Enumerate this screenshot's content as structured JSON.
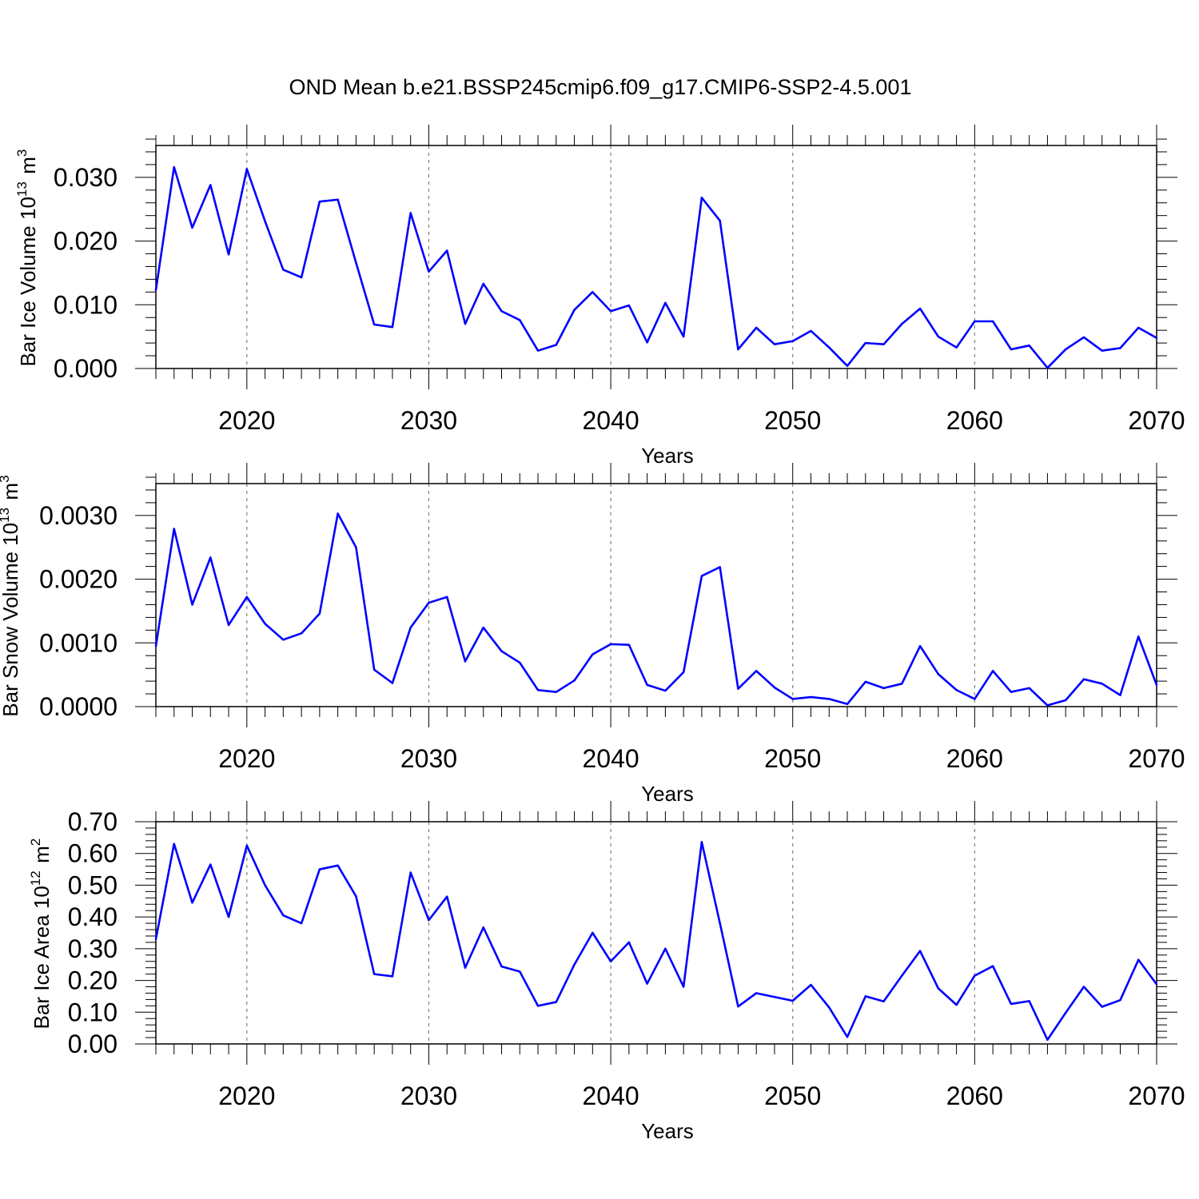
{
  "figure": {
    "title": "OND Mean b.e21.BSSP245cmip6.f09_g17.CMIP6-SSP2-4.5.001"
  },
  "colors": {
    "line": "#0000ff",
    "axis": "#000000",
    "grid": "#808080"
  },
  "chart_data": [
    {
      "type": "line",
      "ylabel": "Bar Ice Volume 10",
      "ylabel_exponent": "13",
      "ylabel_unit": "m",
      "ylabel_unit_exponent": "3",
      "xlabel": "Years",
      "xlim": [
        2015,
        2070
      ],
      "ylim": [
        0,
        0.035
      ],
      "yticks": [
        0.0,
        0.01,
        0.02,
        0.03
      ],
      "ytick_labels": [
        "0.000",
        "0.010",
        "0.020",
        "0.030"
      ],
      "xticks": [
        2020,
        2030,
        2040,
        2050,
        2060,
        2070
      ],
      "xtick_labels": [
        "2020",
        "2030",
        "2040",
        "2050",
        "2060",
        "2070"
      ],
      "vertical_grid": "dashed at major x ticks",
      "x": [
        2015,
        2016,
        2017,
        2018,
        2019,
        2020,
        2021,
        2022,
        2023,
        2024,
        2025,
        2026,
        2027,
        2028,
        2029,
        2030,
        2031,
        2032,
        2033,
        2034,
        2035,
        2036,
        2037,
        2038,
        2039,
        2040,
        2041,
        2042,
        2043,
        2044,
        2045,
        2046,
        2047,
        2048,
        2049,
        2050,
        2051,
        2052,
        2053,
        2054,
        2055,
        2056,
        2057,
        2058,
        2059,
        2060,
        2061,
        2062,
        2063,
        2064,
        2065,
        2066,
        2067,
        2068,
        2069,
        2070
      ],
      "series": [
        {
          "values": [
            0.0123,
            0.0316,
            0.0221,
            0.0288,
            0.0179,
            0.0313,
            0.0231,
            0.0155,
            0.0143,
            0.0262,
            0.0265,
            0.0166,
            0.0069,
            0.0065,
            0.0244,
            0.0152,
            0.0185,
            0.007,
            0.0133,
            0.009,
            0.0076,
            0.0028,
            0.0037,
            0.0092,
            0.012,
            0.009,
            0.0099,
            0.0041,
            0.0103,
            0.005,
            0.0268,
            0.0232,
            0.003,
            0.0064,
            0.0038,
            0.0043,
            0.0059,
            0.0033,
            0.0004,
            0.004,
            0.0038,
            0.007,
            0.0094,
            0.005,
            0.0033,
            0.0074,
            0.0074,
            0.003,
            0.0036,
            0.0001,
            0.003,
            0.0049,
            0.0028,
            0.0032,
            0.0064,
            0.0048
          ]
        }
      ]
    },
    {
      "type": "line",
      "ylabel": "Bar Snow Volume 10",
      "ylabel_exponent": "13",
      "ylabel_unit": "m",
      "ylabel_unit_exponent": "3",
      "xlabel": "Years",
      "xlim": [
        2015,
        2070
      ],
      "ylim": [
        0,
        0.0035
      ],
      "yticks": [
        0.0,
        0.001,
        0.002,
        0.003
      ],
      "ytick_labels": [
        "0.0000",
        "0.0010",
        "0.0020",
        "0.0030"
      ],
      "xticks": [
        2020,
        2030,
        2040,
        2050,
        2060,
        2070
      ],
      "xtick_labels": [
        "2020",
        "2030",
        "2040",
        "2050",
        "2060",
        "2070"
      ],
      "vertical_grid": "dashed at major x ticks",
      "x": [
        2015,
        2016,
        2017,
        2018,
        2019,
        2020,
        2021,
        2022,
        2023,
        2024,
        2025,
        2026,
        2027,
        2028,
        2029,
        2030,
        2031,
        2032,
        2033,
        2034,
        2035,
        2036,
        2037,
        2038,
        2039,
        2040,
        2041,
        2042,
        2043,
        2044,
        2045,
        2046,
        2047,
        2048,
        2049,
        2050,
        2051,
        2052,
        2053,
        2054,
        2055,
        2056,
        2057,
        2058,
        2059,
        2060,
        2061,
        2062,
        2063,
        2064,
        2065,
        2066,
        2067,
        2068,
        2069,
        2070
      ],
      "series": [
        {
          "values": [
            0.00095,
            0.00279,
            0.0016,
            0.00234,
            0.00128,
            0.00172,
            0.0013,
            0.00105,
            0.00115,
            0.00146,
            0.00303,
            0.0025,
            0.00058,
            0.00037,
            0.00124,
            0.00163,
            0.00172,
            0.00071,
            0.00124,
            0.00087,
            0.00069,
            0.00026,
            0.00023,
            0.00041,
            0.00082,
            0.00098,
            0.00097,
            0.00034,
            0.00025,
            0.00054,
            0.00205,
            0.00219,
            0.00028,
            0.00056,
            0.0003,
            0.00012,
            0.00015,
            0.00012,
            4e-05,
            0.00039,
            0.00029,
            0.00036,
            0.00095,
            0.00051,
            0.00026,
            0.00012,
            0.00056,
            0.00023,
            0.00029,
            2e-05,
            0.0001,
            0.00043,
            0.00036,
            0.00018,
            0.0011,
            0.00034
          ]
        }
      ]
    },
    {
      "type": "line",
      "ylabel": "Bar Ice Area 10",
      "ylabel_exponent": "12",
      "ylabel_unit": "m",
      "ylabel_unit_exponent": "2",
      "xlabel": "Years",
      "xlim": [
        2015,
        2070
      ],
      "ylim": [
        0,
        0.7
      ],
      "yticks": [
        0.0,
        0.1,
        0.2,
        0.3,
        0.4,
        0.5,
        0.6,
        0.7
      ],
      "ytick_labels": [
        "0.00",
        "0.10",
        "0.20",
        "0.30",
        "0.40",
        "0.50",
        "0.60",
        "0.70"
      ],
      "xticks": [
        2020,
        2030,
        2040,
        2050,
        2060,
        2070
      ],
      "xtick_labels": [
        "2020",
        "2030",
        "2040",
        "2050",
        "2060",
        "2070"
      ],
      "vertical_grid": "dashed at major x ticks",
      "x": [
        2015,
        2016,
        2017,
        2018,
        2019,
        2020,
        2021,
        2022,
        2023,
        2024,
        2025,
        2026,
        2027,
        2028,
        2029,
        2030,
        2031,
        2032,
        2033,
        2034,
        2035,
        2036,
        2037,
        2038,
        2039,
        2040,
        2041,
        2042,
        2043,
        2044,
        2045,
        2046,
        2047,
        2048,
        2049,
        2050,
        2051,
        2052,
        2053,
        2054,
        2055,
        2056,
        2057,
        2058,
        2059,
        2060,
        2061,
        2062,
        2063,
        2064,
        2065,
        2066,
        2067,
        2068,
        2069,
        2070
      ],
      "series": [
        {
          "values": [
            0.33,
            0.63,
            0.445,
            0.565,
            0.4,
            0.625,
            0.5,
            0.405,
            0.38,
            0.55,
            0.562,
            0.465,
            0.22,
            0.213,
            0.54,
            0.39,
            0.464,
            0.24,
            0.367,
            0.244,
            0.228,
            0.12,
            0.132,
            0.25,
            0.35,
            0.26,
            0.32,
            0.19,
            0.3,
            0.18,
            0.636,
            0.38,
            0.118,
            0.16,
            0.148,
            0.136,
            0.186,
            0.115,
            0.022,
            0.15,
            0.134,
            0.215,
            0.293,
            0.175,
            0.123,
            0.215,
            0.245,
            0.126,
            0.135,
            0.013,
            0.098,
            0.18,
            0.117,
            0.138,
            0.265,
            0.188
          ]
        }
      ]
    }
  ]
}
